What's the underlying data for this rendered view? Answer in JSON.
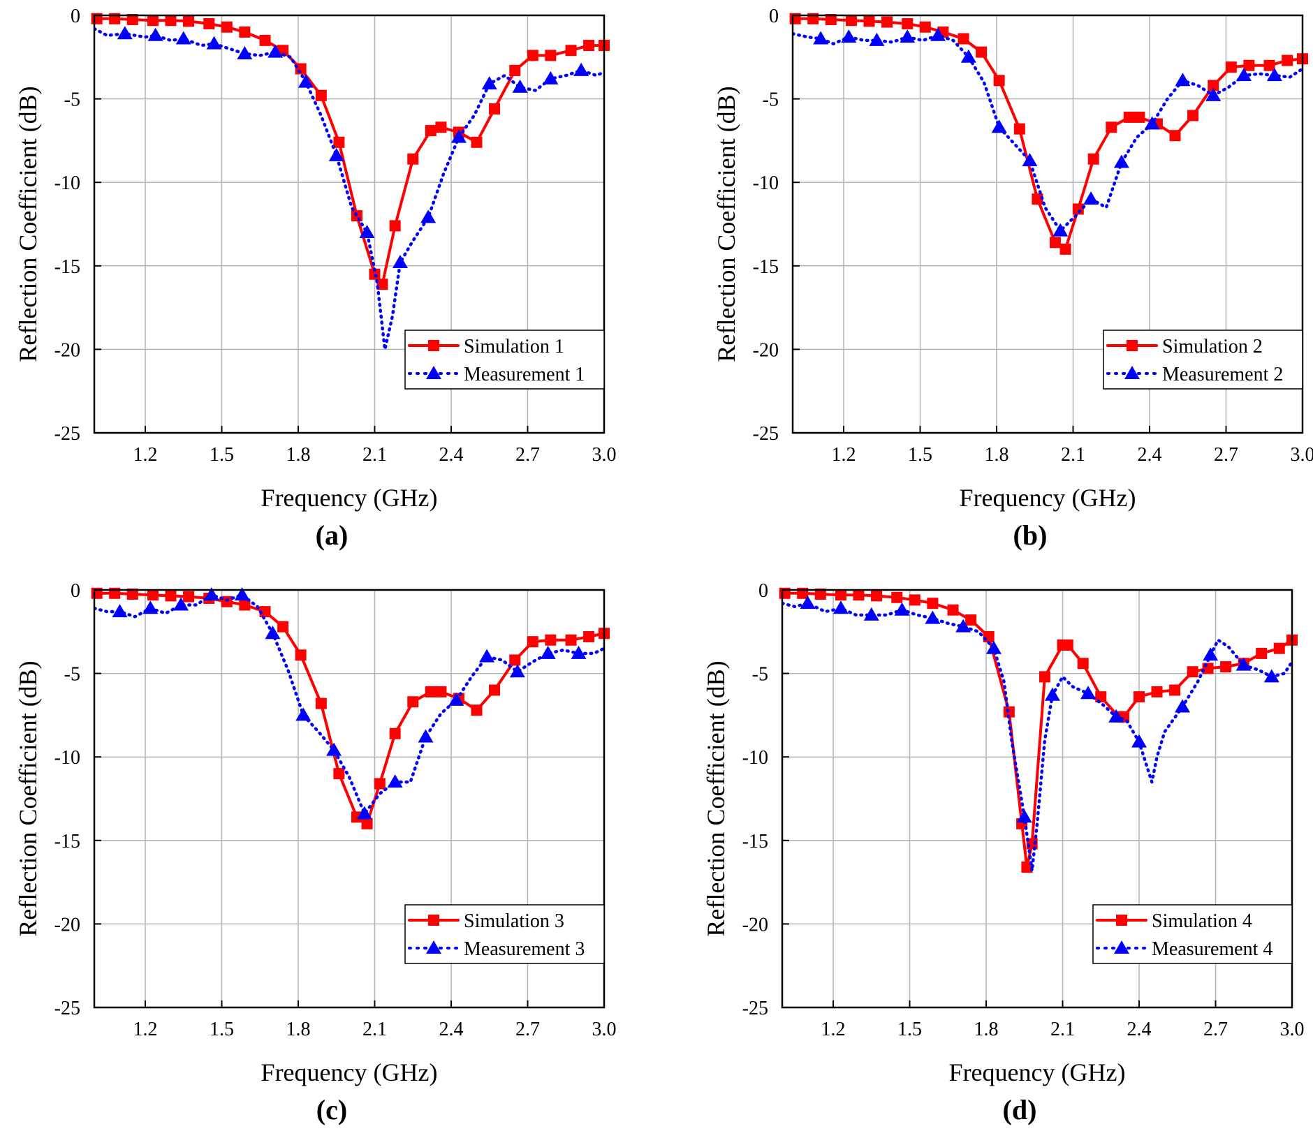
{
  "figure": {
    "colors": {
      "simulation": "#ff0000",
      "measurement": "#0000ff",
      "grid": "#b4b4b4",
      "axis": "#000000"
    }
  },
  "chart_data": [
    {
      "type": "line",
      "panel_label": "(a)",
      "xlabel": "Frequency (GHz)",
      "ylabel": "Reflection Coefficient (dB)",
      "xlim": [
        1.0,
        3.0
      ],
      "ylim": [
        -25,
        0
      ],
      "xticks": [
        "1.2",
        "1.5",
        "1.8",
        "2.1",
        "2.4",
        "2.7",
        "3.0"
      ],
      "yticks": [
        "0",
        "-5",
        "-10",
        "-15",
        "-20",
        "-25"
      ],
      "grid": true,
      "legend": "bottom-right",
      "series": [
        {
          "name": "Simulation 1",
          "style": "solid",
          "marker": "square",
          "x": [
            1.01,
            1.08,
            1.15,
            1.23,
            1.3,
            1.37,
            1.45,
            1.52,
            1.59,
            1.67,
            1.74,
            1.81,
            1.89,
            1.96,
            2.03,
            2.1,
            2.13,
            2.18,
            2.25,
            2.32,
            2.36,
            2.43,
            2.5,
            2.57,
            2.65,
            2.72,
            2.79,
            2.87,
            2.94,
            3.0
          ],
          "y": [
            -0.2,
            -0.2,
            -0.25,
            -0.3,
            -0.3,
            -0.35,
            -0.5,
            -0.7,
            -1.0,
            -1.5,
            -2.1,
            -3.2,
            -4.8,
            -7.6,
            -12.0,
            -15.5,
            -16.1,
            -12.6,
            -8.6,
            -6.9,
            -6.7,
            -7.0,
            -7.6,
            -5.6,
            -3.3,
            -2.4,
            -2.4,
            -2.1,
            -1.8,
            -1.8
          ]
        },
        {
          "name": "Measurement 1",
          "style": "dotted",
          "marker": "triangle",
          "x": [
            1.0,
            1.05,
            1.12,
            1.2,
            1.24,
            1.3,
            1.35,
            1.42,
            1.47,
            1.53,
            1.59,
            1.65,
            1.71,
            1.77,
            1.83,
            1.89,
            1.95,
            2.01,
            2.07,
            2.11,
            2.14,
            2.17,
            2.2,
            2.25,
            2.31,
            2.37,
            2.43,
            2.49,
            2.55,
            2.61,
            2.67,
            2.73,
            2.79,
            2.85,
            2.91,
            2.97,
            3.0
          ],
          "y": [
            -0.8,
            -1.2,
            -1.1,
            -1.3,
            -1.2,
            -1.5,
            -1.4,
            -1.8,
            -1.7,
            -2.0,
            -2.3,
            -2.4,
            -2.2,
            -2.5,
            -4.0,
            -6.0,
            -8.4,
            -11.5,
            -13.0,
            -16.0,
            -20.0,
            -18.0,
            -14.8,
            -13.5,
            -12.1,
            -9.5,
            -7.3,
            -6.0,
            -4.1,
            -3.6,
            -4.3,
            -4.5,
            -3.8,
            -3.6,
            -3.3,
            -3.6,
            -3.4
          ],
          "markers_x": [
            1.12,
            1.24,
            1.35,
            1.47,
            1.59,
            1.71,
            1.83,
            1.95,
            2.07,
            2.2,
            2.31,
            2.43,
            2.55,
            2.67,
            2.79,
            2.91
          ],
          "markers_y": [
            -1.1,
            -1.2,
            -1.4,
            -1.7,
            -2.3,
            -2.2,
            -4.0,
            -8.4,
            -13.0,
            -14.8,
            -12.1,
            -7.3,
            -4.1,
            -4.3,
            -3.8,
            -3.3
          ]
        }
      ]
    },
    {
      "type": "line",
      "panel_label": "(b)",
      "xlabel": "Frequency (GHz)",
      "ylabel": "Reflection Coefficient (dB)",
      "xlim": [
        1.0,
        3.0
      ],
      "ylim": [
        -25,
        0
      ],
      "xticks": [
        "1.2",
        "1.5",
        "1.8",
        "2.1",
        "2.4",
        "2.7",
        "3.0"
      ],
      "yticks": [
        "0",
        "-5",
        "-10",
        "-15",
        "-20",
        "-25"
      ],
      "grid": true,
      "legend": "bottom-right",
      "series": [
        {
          "name": "Simulation 2",
          "style": "solid",
          "marker": "square",
          "x": [
            1.01,
            1.08,
            1.15,
            1.23,
            1.3,
            1.37,
            1.45,
            1.52,
            1.59,
            1.67,
            1.74,
            1.81,
            1.89,
            1.96,
            2.03,
            2.07,
            2.12,
            2.18,
            2.25,
            2.32,
            2.36,
            2.43,
            2.5,
            2.57,
            2.65,
            2.72,
            2.79,
            2.87,
            2.94,
            3.0
          ],
          "y": [
            -0.2,
            -0.2,
            -0.25,
            -0.3,
            -0.35,
            -0.4,
            -0.5,
            -0.7,
            -1.0,
            -1.4,
            -2.2,
            -3.9,
            -6.8,
            -11.0,
            -13.6,
            -14.0,
            -11.6,
            -8.6,
            -6.7,
            -6.1,
            -6.1,
            -6.5,
            -7.2,
            -6.0,
            -4.2,
            -3.1,
            -3.0,
            -3.0,
            -2.7,
            -2.6
          ]
        },
        {
          "name": "Measurement 2",
          "style": "dotted",
          "marker": "triangle",
          "x": [
            1.0,
            1.06,
            1.11,
            1.16,
            1.22,
            1.28,
            1.33,
            1.39,
            1.45,
            1.51,
            1.57,
            1.63,
            1.69,
            1.75,
            1.81,
            1.87,
            1.93,
            1.99,
            2.05,
            2.11,
            2.17,
            2.23,
            2.29,
            2.35,
            2.41,
            2.47,
            2.53,
            2.59,
            2.65,
            2.71,
            2.77,
            2.83,
            2.89,
            2.95,
            3.0
          ],
          "y": [
            -1.1,
            -1.3,
            -1.4,
            -1.7,
            -1.3,
            -1.5,
            -1.5,
            -1.6,
            -1.3,
            -1.5,
            -1.2,
            -1.5,
            -2.5,
            -4.0,
            -6.7,
            -7.7,
            -8.7,
            -11.5,
            -12.9,
            -12.0,
            -11.0,
            -11.5,
            -8.8,
            -7.3,
            -6.5,
            -5.0,
            -3.9,
            -4.2,
            -4.8,
            -4.3,
            -3.6,
            -3.5,
            -3.6,
            -3.7,
            -3.2
          ],
          "markers_x": [
            1.11,
            1.22,
            1.33,
            1.45,
            1.57,
            1.69,
            1.81,
            1.93,
            2.05,
            2.17,
            2.29,
            2.41,
            2.53,
            2.65,
            2.77,
            2.89
          ],
          "markers_y": [
            -1.4,
            -1.3,
            -1.5,
            -1.3,
            -1.2,
            -2.5,
            -6.7,
            -8.7,
            -12.9,
            -11.0,
            -8.8,
            -6.5,
            -3.9,
            -4.8,
            -3.6,
            -3.6
          ]
        }
      ]
    },
    {
      "type": "line",
      "panel_label": "(c)",
      "xlabel": "Frequency (GHz)",
      "ylabel": "Reflection Coefficient (dB)",
      "xlim": [
        1.0,
        3.0
      ],
      "ylim": [
        -25,
        0
      ],
      "xticks": [
        "1.2",
        "1.5",
        "1.8",
        "2.1",
        "2.4",
        "2.7",
        "3.0"
      ],
      "yticks": [
        "0",
        "-5",
        "-10",
        "-15",
        "-20",
        "-25"
      ],
      "grid": true,
      "legend": "bottom-right",
      "series": [
        {
          "name": "Simulation 3",
          "style": "solid",
          "marker": "square",
          "x": [
            1.01,
            1.08,
            1.15,
            1.23,
            1.3,
            1.37,
            1.45,
            1.52,
            1.59,
            1.67,
            1.74,
            1.81,
            1.89,
            1.96,
            2.03,
            2.07,
            2.12,
            2.18,
            2.25,
            2.32,
            2.36,
            2.43,
            2.5,
            2.57,
            2.65,
            2.72,
            2.79,
            2.87,
            2.94,
            3.0
          ],
          "y": [
            -0.2,
            -0.2,
            -0.25,
            -0.3,
            -0.35,
            -0.4,
            -0.5,
            -0.7,
            -0.9,
            -1.3,
            -2.2,
            -3.9,
            -6.8,
            -11.0,
            -13.6,
            -14.0,
            -11.6,
            -8.6,
            -6.7,
            -6.1,
            -6.1,
            -6.5,
            -7.2,
            -6.0,
            -4.2,
            -3.1,
            -3.0,
            -3.0,
            -2.8,
            -2.6
          ]
        },
        {
          "name": "Measurement 3",
          "style": "dotted",
          "marker": "triangle",
          "x": [
            1.0,
            1.05,
            1.1,
            1.16,
            1.22,
            1.28,
            1.34,
            1.4,
            1.46,
            1.52,
            1.58,
            1.64,
            1.7,
            1.76,
            1.82,
            1.88,
            1.94,
            2.0,
            2.06,
            2.12,
            2.18,
            2.24,
            2.3,
            2.36,
            2.42,
            2.48,
            2.54,
            2.6,
            2.66,
            2.72,
            2.78,
            2.84,
            2.9,
            2.96,
            3.0
          ],
          "y": [
            -1.1,
            -1.3,
            -1.3,
            -1.6,
            -1.1,
            -1.4,
            -0.9,
            -0.9,
            -0.3,
            -0.6,
            -0.3,
            -1.0,
            -2.6,
            -4.8,
            -7.5,
            -8.5,
            -9.6,
            -11.2,
            -13.4,
            -12.2,
            -11.5,
            -11.5,
            -8.8,
            -7.4,
            -6.6,
            -5.2,
            -4.0,
            -4.2,
            -4.9,
            -4.3,
            -3.8,
            -3.6,
            -3.8,
            -3.8,
            -3.5
          ],
          "markers_x": [
            1.1,
            1.22,
            1.34,
            1.46,
            1.58,
            1.7,
            1.82,
            1.94,
            2.06,
            2.18,
            2.3,
            2.42,
            2.54,
            2.66,
            2.78,
            2.9
          ],
          "markers_y": [
            -1.3,
            -1.1,
            -0.9,
            -0.3,
            -0.3,
            -2.6,
            -7.5,
            -9.6,
            -13.4,
            -11.5,
            -8.8,
            -6.6,
            -4.0,
            -4.9,
            -3.8,
            -3.8
          ]
        }
      ]
    },
    {
      "type": "line",
      "panel_label": "(d)",
      "xlabel": "Frequency (GHz)",
      "ylabel": "Reflection Coefficient (dB)",
      "xlim": [
        1.0,
        3.0
      ],
      "ylim": [
        -25,
        0
      ],
      "xticks": [
        "1.2",
        "1.5",
        "1.8",
        "2.1",
        "2.4",
        "2.7",
        "3.0"
      ],
      "yticks": [
        "0",
        "-5",
        "-10",
        "-15",
        "-20",
        "-25"
      ],
      "grid": true,
      "legend": "bottom-right",
      "series": [
        {
          "name": "Simulation 4",
          "style": "solid",
          "marker": "square",
          "x": [
            1.01,
            1.08,
            1.15,
            1.23,
            1.3,
            1.37,
            1.45,
            1.52,
            1.59,
            1.67,
            1.74,
            1.81,
            1.89,
            1.94,
            1.96,
            1.98,
            2.03,
            2.1,
            2.12,
            2.18,
            2.25,
            2.32,
            2.34,
            2.4,
            2.47,
            2.54,
            2.61,
            2.67,
            2.74,
            2.81,
            2.88,
            2.95,
            3.0
          ],
          "y": [
            -0.2,
            -0.2,
            -0.25,
            -0.3,
            -0.3,
            -0.35,
            -0.45,
            -0.6,
            -0.8,
            -1.2,
            -1.8,
            -2.8,
            -7.3,
            -14.0,
            -16.6,
            -15.2,
            -5.2,
            -3.3,
            -3.3,
            -4.4,
            -6.4,
            -7.6,
            -7.6,
            -6.4,
            -6.1,
            -6.0,
            -4.9,
            -4.7,
            -4.6,
            -4.4,
            -3.8,
            -3.5,
            -3.0
          ]
        },
        {
          "name": "Measurement 4",
          "style": "dotted",
          "marker": "triangle",
          "x": [
            1.0,
            1.05,
            1.1,
            1.17,
            1.23,
            1.29,
            1.35,
            1.41,
            1.47,
            1.53,
            1.59,
            1.65,
            1.71,
            1.77,
            1.83,
            1.87,
            1.9,
            1.95,
            1.98,
            2.0,
            2.03,
            2.06,
            2.1,
            2.14,
            2.2,
            2.26,
            2.31,
            2.35,
            2.4,
            2.45,
            2.47,
            2.5,
            2.57,
            2.63,
            2.68,
            2.71,
            2.75,
            2.81,
            2.87,
            2.92,
            2.97,
            3.0
          ],
          "y": [
            -0.8,
            -1.0,
            -0.8,
            -1.3,
            -1.1,
            -1.5,
            -1.5,
            -1.5,
            -1.2,
            -1.5,
            -1.7,
            -2.0,
            -2.2,
            -2.5,
            -3.5,
            -5.5,
            -9.0,
            -13.6,
            -16.8,
            -14.0,
            -9.0,
            -6.3,
            -5.2,
            -5.8,
            -6.2,
            -6.9,
            -7.6,
            -7.8,
            -9.1,
            -11.5,
            -10.0,
            -8.5,
            -7.0,
            -5.5,
            -3.9,
            -3.0,
            -3.4,
            -4.5,
            -4.8,
            -5.2,
            -5.0,
            -4.3
          ],
          "markers_x": [
            1.1,
            1.23,
            1.35,
            1.47,
            1.59,
            1.71,
            1.83,
            1.95,
            2.06,
            2.2,
            2.31,
            2.4,
            2.57,
            2.68,
            2.81,
            2.92
          ],
          "markers_y": [
            -0.8,
            -1.1,
            -1.5,
            -1.2,
            -1.7,
            -2.2,
            -3.5,
            -13.6,
            -6.3,
            -6.2,
            -7.6,
            -9.1,
            -7.0,
            -3.9,
            -4.5,
            -5.2
          ]
        }
      ]
    }
  ]
}
